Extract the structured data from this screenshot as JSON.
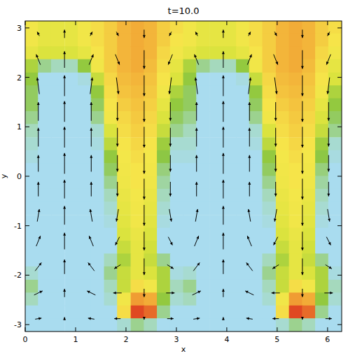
{
  "chart_data": {
    "type": "heatmap",
    "title": "t=10.0",
    "x_label": "x",
    "y_label": "y",
    "xlim": [
      0,
      6.28
    ],
    "ylim": [
      -3.14,
      3.14
    ],
    "xticks": [
      0,
      1,
      2,
      3,
      4,
      5,
      6
    ],
    "yticks": [
      -3,
      -2,
      -1,
      0,
      1,
      2,
      3
    ],
    "zlim": [
      0,
      1
    ],
    "colors": [
      "#a9dcef",
      "#a6dac4",
      "#8cc63f",
      "#d6e23c",
      "#f6e74a",
      "#f3b73a",
      "#ee8a2e",
      "#d8241c"
    ],
    "x": [
      0.13,
      0.39,
      0.65,
      0.92,
      1.18,
      1.44,
      1.7,
      1.96,
      2.23,
      2.49,
      2.75,
      3.01,
      3.27,
      3.53,
      3.8,
      4.06,
      4.32,
      4.58,
      4.84,
      5.11,
      5.37,
      5.63,
      5.89,
      6.15
    ],
    "y": [
      3.01,
      2.75,
      2.49,
      2.23,
      1.96,
      1.7,
      1.44,
      1.18,
      0.92,
      0.65,
      0.39,
      0.13,
      -0.13,
      -0.39,
      -0.65,
      -0.92,
      -1.18,
      -1.44,
      -1.7,
      -1.96,
      -2.23,
      -2.49,
      -2.75,
      -3.01
    ],
    "z": [
      [
        0.55,
        0.5,
        0.5,
        0.5,
        0.55,
        0.6,
        0.65,
        0.72,
        0.75,
        0.72,
        0.65,
        0.6,
        0.55,
        0.5,
        0.5,
        0.5,
        0.55,
        0.6,
        0.65,
        0.72,
        0.75,
        0.72,
        0.65,
        0.6
      ],
      [
        0.55,
        0.5,
        0.5,
        0.5,
        0.55,
        0.6,
        0.65,
        0.72,
        0.75,
        0.72,
        0.65,
        0.58,
        0.55,
        0.5,
        0.5,
        0.5,
        0.55,
        0.6,
        0.65,
        0.72,
        0.75,
        0.72,
        0.65,
        0.58
      ],
      [
        0.5,
        0.45,
        0.45,
        0.45,
        0.5,
        0.58,
        0.65,
        0.72,
        0.75,
        0.72,
        0.62,
        0.55,
        0.5,
        0.45,
        0.45,
        0.45,
        0.5,
        0.58,
        0.65,
        0.72,
        0.75,
        0.72,
        0.62,
        0.55
      ],
      [
        0.35,
        0.2,
        0.15,
        0.15,
        0.3,
        0.55,
        0.65,
        0.72,
        0.75,
        0.7,
        0.6,
        0.5,
        0.35,
        0.2,
        0.15,
        0.15,
        0.3,
        0.55,
        0.65,
        0.72,
        0.75,
        0.7,
        0.6,
        0.5
      ],
      [
        0.3,
        0,
        0,
        0,
        0.05,
        0.4,
        0.62,
        0.7,
        0.72,
        0.68,
        0.58,
        0.45,
        0.3,
        0,
        0,
        0,
        0.05,
        0.4,
        0.62,
        0.7,
        0.72,
        0.68,
        0.58,
        0.45
      ],
      [
        0.25,
        0,
        0,
        0,
        0,
        0.3,
        0.6,
        0.68,
        0.7,
        0.66,
        0.55,
        0.35,
        0.25,
        0,
        0,
        0,
        0,
        0.3,
        0.6,
        0.68,
        0.7,
        0.66,
        0.55,
        0.35
      ],
      [
        0.25,
        0,
        0,
        0,
        0,
        0.25,
        0.58,
        0.65,
        0.68,
        0.64,
        0.5,
        0.3,
        0.25,
        0,
        0,
        0,
        0,
        0.25,
        0.58,
        0.65,
        0.68,
        0.64,
        0.5,
        0.3
      ],
      [
        0.2,
        0,
        0,
        0,
        0,
        0.2,
        0.55,
        0.62,
        0.66,
        0.62,
        0.45,
        0.25,
        0.2,
        0,
        0,
        0,
        0,
        0.2,
        0.55,
        0.62,
        0.66,
        0.62,
        0.45,
        0.25
      ],
      [
        0.15,
        0,
        0,
        0,
        0,
        0.1,
        0.45,
        0.6,
        0.64,
        0.6,
        0.4,
        0.2,
        0.15,
        0,
        0,
        0,
        0,
        0.1,
        0.45,
        0.6,
        0.64,
        0.6,
        0.4,
        0.2
      ],
      [
        0.1,
        0,
        0,
        0,
        0,
        0.05,
        0.38,
        0.58,
        0.62,
        0.58,
        0.32,
        0.1,
        0.1,
        0,
        0,
        0,
        0,
        0.05,
        0.38,
        0.58,
        0.62,
        0.58,
        0.32,
        0.1
      ],
      [
        0.05,
        0,
        0,
        0,
        0,
        0,
        0.3,
        0.56,
        0.6,
        0.56,
        0.28,
        0.05,
        0.05,
        0,
        0,
        0,
        0,
        0,
        0.3,
        0.56,
        0.6,
        0.56,
        0.28,
        0.05
      ],
      [
        0,
        0,
        0,
        0,
        0,
        0,
        0.25,
        0.55,
        0.58,
        0.55,
        0.22,
        0,
        0,
        0,
        0,
        0,
        0,
        0,
        0.25,
        0.55,
        0.58,
        0.55,
        0.22,
        0
      ],
      [
        0,
        0,
        0,
        0,
        0,
        0,
        0.2,
        0.54,
        0.58,
        0.54,
        0.18,
        0,
        0,
        0,
        0,
        0,
        0,
        0,
        0.2,
        0.54,
        0.58,
        0.54,
        0.18,
        0
      ],
      [
        0,
        0,
        0,
        0,
        0,
        0,
        0.15,
        0.52,
        0.56,
        0.52,
        0.15,
        0,
        0,
        0,
        0,
        0,
        0,
        0,
        0.15,
        0.52,
        0.56,
        0.52,
        0.15,
        0
      ],
      [
        0,
        0,
        0,
        0,
        0,
        0,
        0.1,
        0.5,
        0.55,
        0.5,
        0.1,
        0,
        0,
        0,
        0,
        0,
        0,
        0,
        0.1,
        0.5,
        0.55,
        0.5,
        0.1,
        0
      ],
      [
        0,
        0,
        0,
        0,
        0,
        0,
        0.05,
        0.48,
        0.55,
        0.48,
        0.05,
        0,
        0,
        0,
        0,
        0,
        0,
        0,
        0.05,
        0.48,
        0.55,
        0.48,
        0.05,
        0
      ],
      [
        0,
        0,
        0,
        0,
        0,
        0,
        0,
        0.45,
        0.52,
        0.45,
        0,
        0,
        0,
        0,
        0,
        0,
        0,
        0,
        0,
        0.45,
        0.52,
        0.45,
        0,
        0
      ],
      [
        0,
        0,
        0,
        0,
        0,
        0,
        0,
        0.4,
        0.5,
        0.42,
        0,
        0,
        0,
        0,
        0,
        0,
        0,
        0,
        0,
        0.4,
        0.5,
        0.42,
        0,
        0
      ],
      [
        0,
        0,
        0,
        0,
        0,
        0,
        0.15,
        0.35,
        0.5,
        0.4,
        0.2,
        0,
        0,
        0,
        0,
        0,
        0,
        0,
        0.15,
        0.35,
        0.5,
        0.4,
        0.2,
        0
      ],
      [
        0.1,
        0,
        0,
        0,
        0,
        0,
        0.2,
        0.4,
        0.5,
        0.45,
        0.35,
        0.05,
        0.1,
        0,
        0,
        0,
        0,
        0,
        0.2,
        0.4,
        0.5,
        0.45,
        0.35,
        0.05
      ],
      [
        0.2,
        0,
        0,
        0,
        0,
        0,
        0.15,
        0.4,
        0.6,
        0.55,
        0.35,
        0.15,
        0.2,
        0,
        0,
        0,
        0,
        0,
        0.15,
        0.4,
        0.6,
        0.55,
        0.35,
        0.15
      ],
      [
        0.15,
        0,
        0,
        0,
        0,
        0,
        0.1,
        0.55,
        0.8,
        0.75,
        0.3,
        0.1,
        0.15,
        0,
        0,
        0,
        0,
        0,
        0.1,
        0.55,
        0.8,
        0.75,
        0.3,
        0.1
      ],
      [
        0,
        0,
        0,
        0,
        0,
        0,
        0,
        0.6,
        0.95,
        0.9,
        0.2,
        0,
        0,
        0,
        0,
        0,
        0,
        0,
        0,
        0.6,
        0.95,
        0.9,
        0.2,
        0
      ],
      [
        0,
        0,
        0,
        0,
        0,
        0,
        0,
        0.1,
        0.2,
        0.15,
        0,
        0,
        0,
        0,
        0,
        0,
        0,
        0,
        0,
        0.1,
        0.2,
        0.15,
        0,
        0
      ]
    ],
    "vectors": {
      "color": "#000000",
      "x": [
        0.26,
        0.78,
        1.31,
        1.83,
        2.36,
        2.88,
        3.4,
        3.93,
        4.45,
        4.97,
        5.5,
        6.02
      ],
      "y": [
        2.88,
        2.36,
        1.83,
        1.31,
        0.79,
        0.26,
        -0.26,
        -0.79,
        -1.31,
        -1.83,
        -2.36,
        -2.88
      ],
      "u": [
        [
          -0.1,
          0,
          0.1,
          0.1,
          0,
          -0.1,
          -0.1,
          0,
          0.1,
          0.1,
          0,
          -0.1
        ],
        [
          -0.2,
          0,
          0.2,
          0.2,
          0,
          -0.2,
          -0.2,
          0,
          0.2,
          0.2,
          0,
          -0.2
        ],
        [
          -0.1,
          0,
          0.1,
          0.1,
          0,
          -0.1,
          -0.1,
          0,
          0.1,
          0.1,
          0,
          -0.1
        ],
        [
          0,
          0,
          0,
          0,
          0,
          0,
          0,
          0,
          0,
          0,
          0,
          0
        ],
        [
          0,
          0,
          0,
          0,
          0,
          0,
          0,
          0,
          0,
          0,
          0,
          0
        ],
        [
          0,
          0,
          0,
          0,
          0,
          0,
          0,
          0,
          0,
          0,
          0,
          0
        ],
        [
          0,
          0,
          0,
          0,
          0,
          0,
          0,
          0,
          0,
          0,
          0,
          0
        ],
        [
          0.1,
          0,
          -0.1,
          -0.1,
          0,
          0.1,
          0.1,
          0,
          -0.1,
          -0.1,
          0,
          0.1
        ],
        [
          0.2,
          0,
          -0.2,
          -0.2,
          0,
          0.2,
          0.2,
          0,
          -0.2,
          -0.2,
          0,
          0.2
        ],
        [
          0.3,
          0,
          -0.3,
          -0.3,
          0,
          0.3,
          0.3,
          0,
          -0.3,
          -0.3,
          0,
          0.3
        ],
        [
          0.4,
          0,
          -0.4,
          -0.4,
          0,
          0.4,
          0.4,
          0,
          -0.4,
          -0.4,
          0,
          0.4
        ],
        [
          0.3,
          0,
          -0.3,
          -0.3,
          0,
          0.3,
          0.3,
          0,
          -0.3,
          -0.3,
          0,
          0.3
        ]
      ],
      "v": [
        [
          0.2,
          0.4,
          0.2,
          -0.2,
          -0.4,
          -0.2,
          0.2,
          0.4,
          0.2,
          -0.2,
          -0.4,
          -0.2
        ],
        [
          0.5,
          0.8,
          0.5,
          -0.5,
          -0.9,
          -0.5,
          0.5,
          0.8,
          0.5,
          -0.5,
          -0.9,
          -0.5
        ],
        [
          0.8,
          1,
          0.8,
          -0.8,
          -1,
          -0.8,
          0.8,
          1,
          0.8,
          -0.8,
          -1,
          -0.8
        ],
        [
          0.9,
          1,
          0.9,
          -0.9,
          -1,
          -0.9,
          0.9,
          1,
          0.9,
          -0.9,
          -1,
          -0.9
        ],
        [
          0.9,
          1,
          0.9,
          -0.9,
          -1,
          -0.9,
          0.9,
          1,
          0.9,
          -0.9,
          -1,
          -0.9
        ],
        [
          0.8,
          1,
          0.8,
          -0.8,
          -1,
          -0.8,
          0.8,
          1,
          0.8,
          -0.8,
          -1,
          -0.8
        ],
        [
          0.7,
          0.9,
          0.7,
          -0.7,
          -1,
          -0.7,
          0.7,
          0.9,
          0.7,
          -0.7,
          -1,
          -0.7
        ],
        [
          0.6,
          0.9,
          0.6,
          -0.6,
          -1,
          -0.6,
          0.6,
          0.9,
          0.6,
          -0.6,
          -1,
          -0.6
        ],
        [
          0.5,
          0.8,
          0.5,
          -0.4,
          -0.9,
          -0.4,
          0.5,
          0.8,
          0.5,
          -0.4,
          -0.9,
          -0.4
        ],
        [
          0.4,
          0.7,
          0.4,
          -0.2,
          -0.8,
          -0.2,
          0.4,
          0.7,
          0.4,
          -0.2,
          -0.8,
          -0.2
        ],
        [
          0.2,
          0.4,
          0.2,
          0,
          -0.4,
          0,
          0.2,
          0.4,
          0.2,
          0,
          -0.4,
          0
        ],
        [
          0.05,
          0.15,
          0.05,
          0,
          -0.1,
          0,
          0.05,
          0.15,
          0.05,
          0,
          -0.1,
          0
        ]
      ]
    }
  }
}
